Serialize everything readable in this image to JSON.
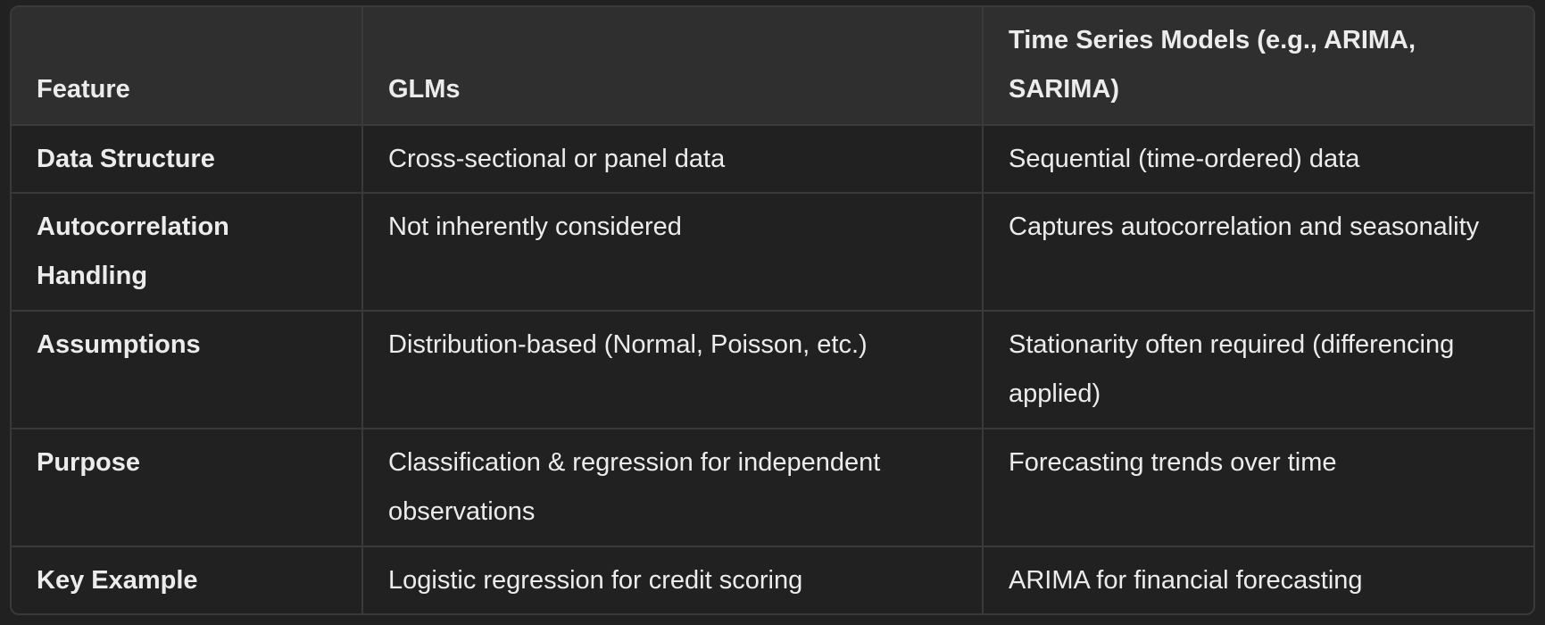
{
  "table": {
    "headers": [
      "Feature",
      "GLMs",
      "Time Series Models (e.g., ARIMA, SARIMA)"
    ],
    "rows": [
      {
        "feature": "Data Structure",
        "glms": "Cross-sectional or panel data",
        "time_series": "Sequential (time-ordered) data"
      },
      {
        "feature": "Autocorrelation Handling",
        "glms": "Not inherently considered",
        "time_series": "Captures autocorrelation and seasonality"
      },
      {
        "feature": "Assumptions",
        "glms": "Distribution-based (Normal, Poisson, etc.)",
        "time_series": "Stationarity often required (differencing applied)"
      },
      {
        "feature": "Purpose",
        "glms": "Classification & regression for independent observations",
        "time_series": "Forecasting trends over time"
      },
      {
        "feature": "Key Example",
        "glms": "Logistic regression for credit scoring",
        "time_series": "ARIMA for financial forecasting"
      }
    ]
  }
}
